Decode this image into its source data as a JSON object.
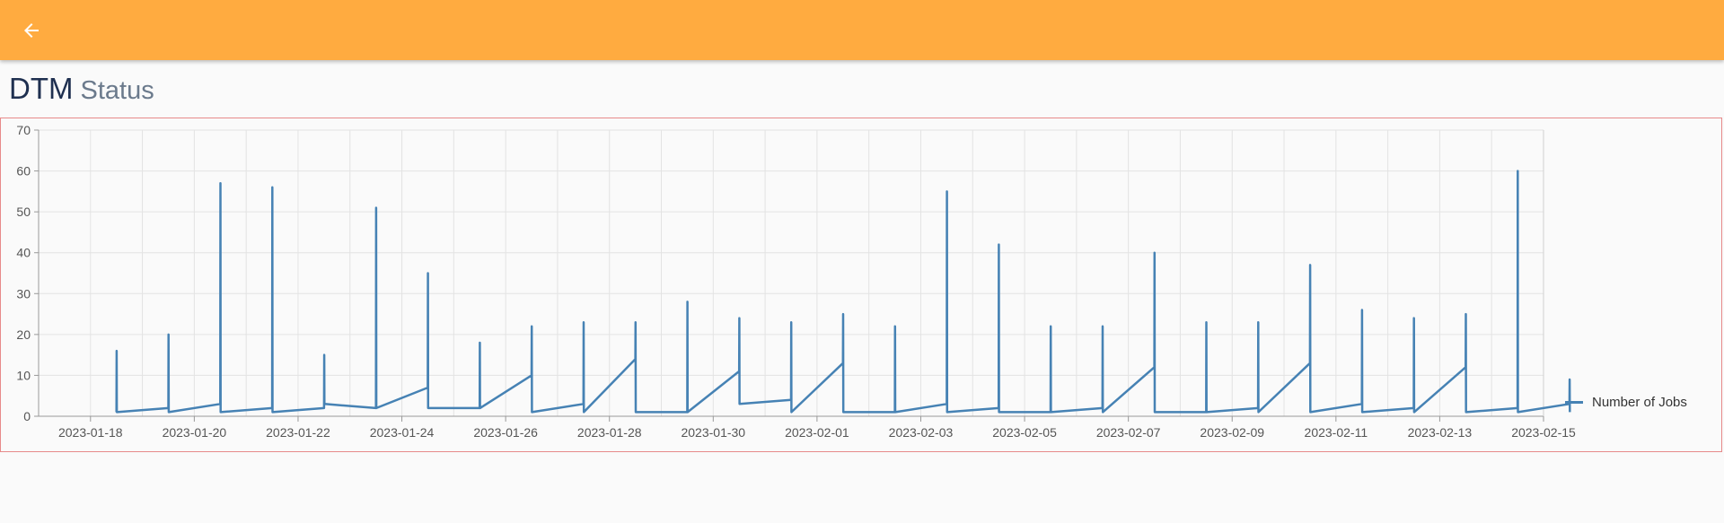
{
  "appbar": {
    "background": "#ffab40",
    "back_icon": "arrow-left-icon"
  },
  "header": {
    "title": "DTM",
    "subtitle": "Status"
  },
  "chart_data": {
    "type": "line",
    "title": "",
    "xlabel": "",
    "ylabel": "",
    "ylim": [
      0,
      70
    ],
    "yticks": [
      0,
      10,
      20,
      30,
      40,
      50,
      60,
      70
    ],
    "xlim": [
      "2023-01-17",
      "2023-02-15"
    ],
    "xticks": [
      "2023-01-18",
      "2023-01-20",
      "2023-01-22",
      "2023-01-24",
      "2023-01-26",
      "2023-01-28",
      "2023-01-30",
      "2023-02-01",
      "2023-02-03",
      "2023-02-05",
      "2023-02-07",
      "2023-02-09",
      "2023-02-11",
      "2023-02-13",
      "2023-02-15"
    ],
    "grid": true,
    "legend_position": "right",
    "color": "#4682b4",
    "series": [
      {
        "name": "Number of Jobs",
        "x": [
          "2023-01-18T12:00",
          "2023-01-18T12:05",
          "2023-01-18T12:10",
          "2023-01-19T12:00",
          "2023-01-19T12:05",
          "2023-01-19T12:10",
          "2023-01-20T12:00",
          "2023-01-20T12:05",
          "2023-01-20T12:10",
          "2023-01-21T12:00",
          "2023-01-21T12:05",
          "2023-01-21T12:10",
          "2023-01-22T12:00",
          "2023-01-22T12:05",
          "2023-01-22T12:10",
          "2023-01-23T12:00",
          "2023-01-23T12:05",
          "2023-01-23T12:10",
          "2023-01-24T12:00",
          "2023-01-24T12:05",
          "2023-01-24T12:10",
          "2023-01-25T12:00",
          "2023-01-25T12:05",
          "2023-01-25T12:10",
          "2023-01-26T12:00",
          "2023-01-26T12:05",
          "2023-01-26T12:10",
          "2023-01-27T12:00",
          "2023-01-27T12:05",
          "2023-01-27T12:10",
          "2023-01-28T12:00",
          "2023-01-28T12:05",
          "2023-01-28T12:10",
          "2023-01-29T12:00",
          "2023-01-29T12:05",
          "2023-01-29T12:10",
          "2023-01-30T12:00",
          "2023-01-30T12:05",
          "2023-01-30T12:10",
          "2023-01-31T12:00",
          "2023-01-31T12:05",
          "2023-01-31T12:10",
          "2023-02-01T12:00",
          "2023-02-01T12:05",
          "2023-02-01T12:10",
          "2023-02-02T12:00",
          "2023-02-02T12:05",
          "2023-02-02T12:10",
          "2023-02-03T12:00",
          "2023-02-03T12:05",
          "2023-02-03T12:10",
          "2023-02-04T12:00",
          "2023-02-04T12:05",
          "2023-02-04T12:10",
          "2023-02-05T12:00",
          "2023-02-05T12:05",
          "2023-02-05T12:10",
          "2023-02-06T12:00",
          "2023-02-06T12:05",
          "2023-02-06T12:10",
          "2023-02-07T12:00",
          "2023-02-07T12:05",
          "2023-02-07T12:10",
          "2023-02-08T12:00",
          "2023-02-08T12:05",
          "2023-02-08T12:10",
          "2023-02-09T12:00",
          "2023-02-09T12:05",
          "2023-02-09T12:10",
          "2023-02-10T12:00",
          "2023-02-10T12:05",
          "2023-02-10T12:10",
          "2023-02-11T12:00",
          "2023-02-11T12:05",
          "2023-02-11T12:10",
          "2023-02-12T12:00",
          "2023-02-12T12:05",
          "2023-02-12T12:10",
          "2023-02-13T12:00",
          "2023-02-13T12:05",
          "2023-02-13T12:10",
          "2023-02-14T12:00",
          "2023-02-14T12:05",
          "2023-02-14T12:10",
          "2023-02-15T12:00",
          "2023-02-15T12:05",
          "2023-02-15T12:10"
        ],
        "values": [
          1,
          16,
          1,
          2,
          20,
          1,
          3,
          57,
          1,
          2,
          56,
          1,
          2,
          15,
          3,
          2,
          51,
          2,
          7,
          35,
          2,
          2,
          18,
          2,
          10,
          22,
          1,
          3,
          23,
          1,
          14,
          23,
          1,
          1,
          28,
          1,
          11,
          24,
          3,
          4,
          23,
          1,
          13,
          25,
          1,
          1,
          22,
          1,
          3,
          55,
          1,
          2,
          42,
          1,
          1,
          22,
          1,
          2,
          22,
          1,
          12,
          40,
          1,
          1,
          23,
          1,
          2,
          23,
          1,
          13,
          37,
          1,
          3,
          26,
          1,
          2,
          24,
          1,
          12,
          25,
          1,
          2,
          60,
          1,
          3,
          9,
          1
        ]
      }
    ]
  }
}
